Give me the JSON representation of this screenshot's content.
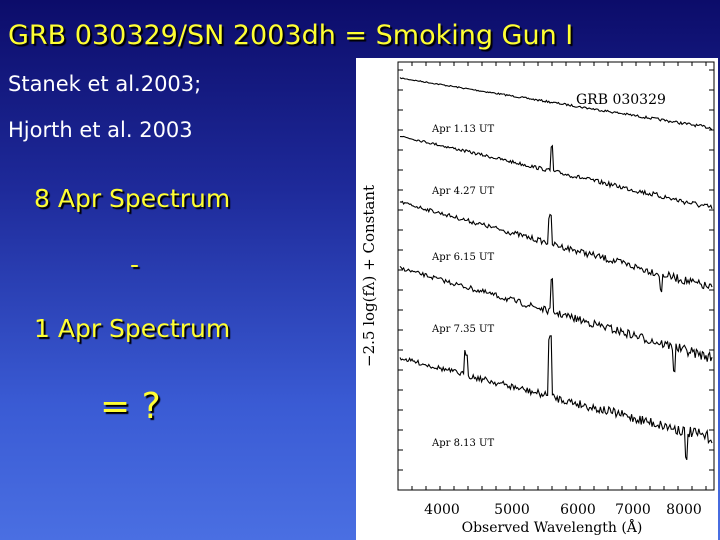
{
  "slide": {
    "title": "GRB 030329/SN 2003dh = Smoking Gun I",
    "citation_1": "Stanek et al.2003;",
    "citation_2": "Hjorth et al. 2003",
    "line_1": "8 Apr Spectrum",
    "line_2": "-",
    "line_3": "1 Apr Spectrum",
    "line_4": "= ?"
  },
  "figure": {
    "label": "GRB 030329",
    "xlabel": "Observed Wavelength (Å)",
    "ylabel": "−2.5 log(fλ) + Constant",
    "x_ticks": [
      "4000",
      "5000",
      "6000",
      "7000",
      "8000"
    ],
    "epochs": [
      "Apr 1.13 UT",
      "Apr 4.27 UT",
      "Apr 6.15 UT",
      "Apr 7.35 UT",
      "Apr 8.13 UT"
    ]
  },
  "colors": {
    "title": "#ffff33",
    "citation": "#ffffff",
    "background_top": "#0c0c6a",
    "background_bottom": "#4a6fe2"
  }
}
